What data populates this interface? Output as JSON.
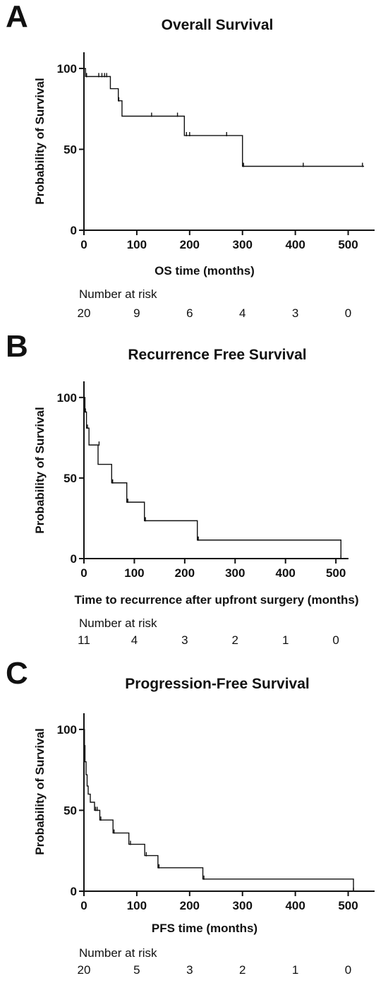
{
  "chart_data": [
    {
      "type": "line",
      "panel": "A",
      "title": "Overall Survival",
      "xlabel": "OS time (months)",
      "ylabel": "Probability of Survival",
      "xlim": [
        0,
        550
      ],
      "ylim": [
        0,
        110
      ],
      "xticks": [
        0,
        100,
        200,
        300,
        400,
        500
      ],
      "yticks": [
        0,
        50,
        100
      ],
      "grid": false,
      "series": [
        {
          "steps": [
            [
              0,
              100
            ],
            [
              3,
              95
            ],
            [
              50,
              87.5
            ],
            [
              65,
              80
            ],
            [
              72,
              70.5
            ],
            [
              190,
              58.5
            ],
            [
              300,
              39.5
            ],
            [
              530,
              39.5
            ]
          ],
          "censored": [
            [
              5,
              95
            ],
            [
              28,
              95
            ],
            [
              34,
              95
            ],
            [
              39,
              95
            ],
            [
              43,
              95
            ],
            [
              66,
              80
            ],
            [
              128,
              70.5
            ],
            [
              177,
              70.5
            ],
            [
              194,
              58.5
            ],
            [
              200,
              58.5
            ],
            [
              270,
              58.5
            ],
            [
              302,
              39.5
            ],
            [
              415,
              39.5
            ],
            [
              527,
              39.5
            ]
          ]
        }
      ],
      "risk_table": {
        "header": "Number at risk",
        "x": [
          0,
          100,
          200,
          300,
          400,
          500
        ],
        "values": [
          "20",
          "9",
          "6",
          "4",
          "3",
          "0"
        ]
      }
    },
    {
      "type": "line",
      "panel": "B",
      "title": "Recurrence Free Survival",
      "xlabel": "Time to recurrence after upfront surgery (months)",
      "ylabel": "Probability of Survival",
      "xlim": [
        0,
        525
      ],
      "ylim": [
        0,
        110
      ],
      "xticks": [
        0,
        100,
        200,
        300,
        400,
        500
      ],
      "yticks": [
        0,
        50,
        100
      ],
      "grid": false,
      "series": [
        {
          "steps": [
            [
              0,
              100
            ],
            [
              2,
              91
            ],
            [
              5,
              81
            ],
            [
              10,
              70.5
            ],
            [
              28,
              58.5
            ],
            [
              55,
              47
            ],
            [
              85,
              35
            ],
            [
              120,
              23.5
            ],
            [
              225,
              11.5
            ],
            [
              510,
              0
            ],
            [
              512,
              0
            ]
          ],
          "censored": [
            [
              3,
              91
            ],
            [
              7,
              81
            ],
            [
              30,
              70.5
            ],
            [
              57,
              47
            ],
            [
              87,
              35
            ],
            [
              122,
              23.5
            ],
            [
              227,
              11.5
            ],
            [
              510,
              0
            ]
          ]
        }
      ],
      "risk_table": {
        "header": "Number at risk",
        "x": [
          0,
          100,
          200,
          300,
          400,
          500
        ],
        "values": [
          "11",
          "4",
          "3",
          "2",
          "1",
          "0"
        ]
      }
    },
    {
      "type": "line",
      "panel": "C",
      "title": "Progression-Free Survival",
      "xlabel": "PFS time (months)",
      "ylabel": "Probability of Survival",
      "xlim": [
        0,
        550
      ],
      "ylim": [
        0,
        110
      ],
      "xticks": [
        0,
        100,
        200,
        300,
        400,
        500
      ],
      "yticks": [
        0,
        50,
        100
      ],
      "grid": false,
      "series": [
        {
          "steps": [
            [
              0,
              100
            ],
            [
              1,
              90
            ],
            [
              2,
              80
            ],
            [
              4,
              72
            ],
            [
              6,
              65
            ],
            [
              8,
              60
            ],
            [
              12,
              55
            ],
            [
              20,
              50
            ],
            [
              30,
              44
            ],
            [
              55,
              36
            ],
            [
              85,
              29
            ],
            [
              115,
              22
            ],
            [
              140,
              14.5
            ],
            [
              225,
              7.5
            ],
            [
              510,
              0
            ],
            [
              512,
              0
            ]
          ],
          "censored": [
            [
              22,
              50
            ],
            [
              25,
              50
            ],
            [
              32,
              44
            ],
            [
              57,
              36
            ],
            [
              88,
              29
            ],
            [
              118,
              22
            ],
            [
              142,
              14.5
            ],
            [
              227,
              7.5
            ],
            [
              510,
              0
            ]
          ]
        }
      ],
      "risk_table": {
        "header": "Number at risk",
        "x": [
          0,
          100,
          200,
          300,
          400,
          500
        ],
        "values": [
          "20",
          "5",
          "3",
          "2",
          "1",
          "0"
        ]
      }
    }
  ]
}
